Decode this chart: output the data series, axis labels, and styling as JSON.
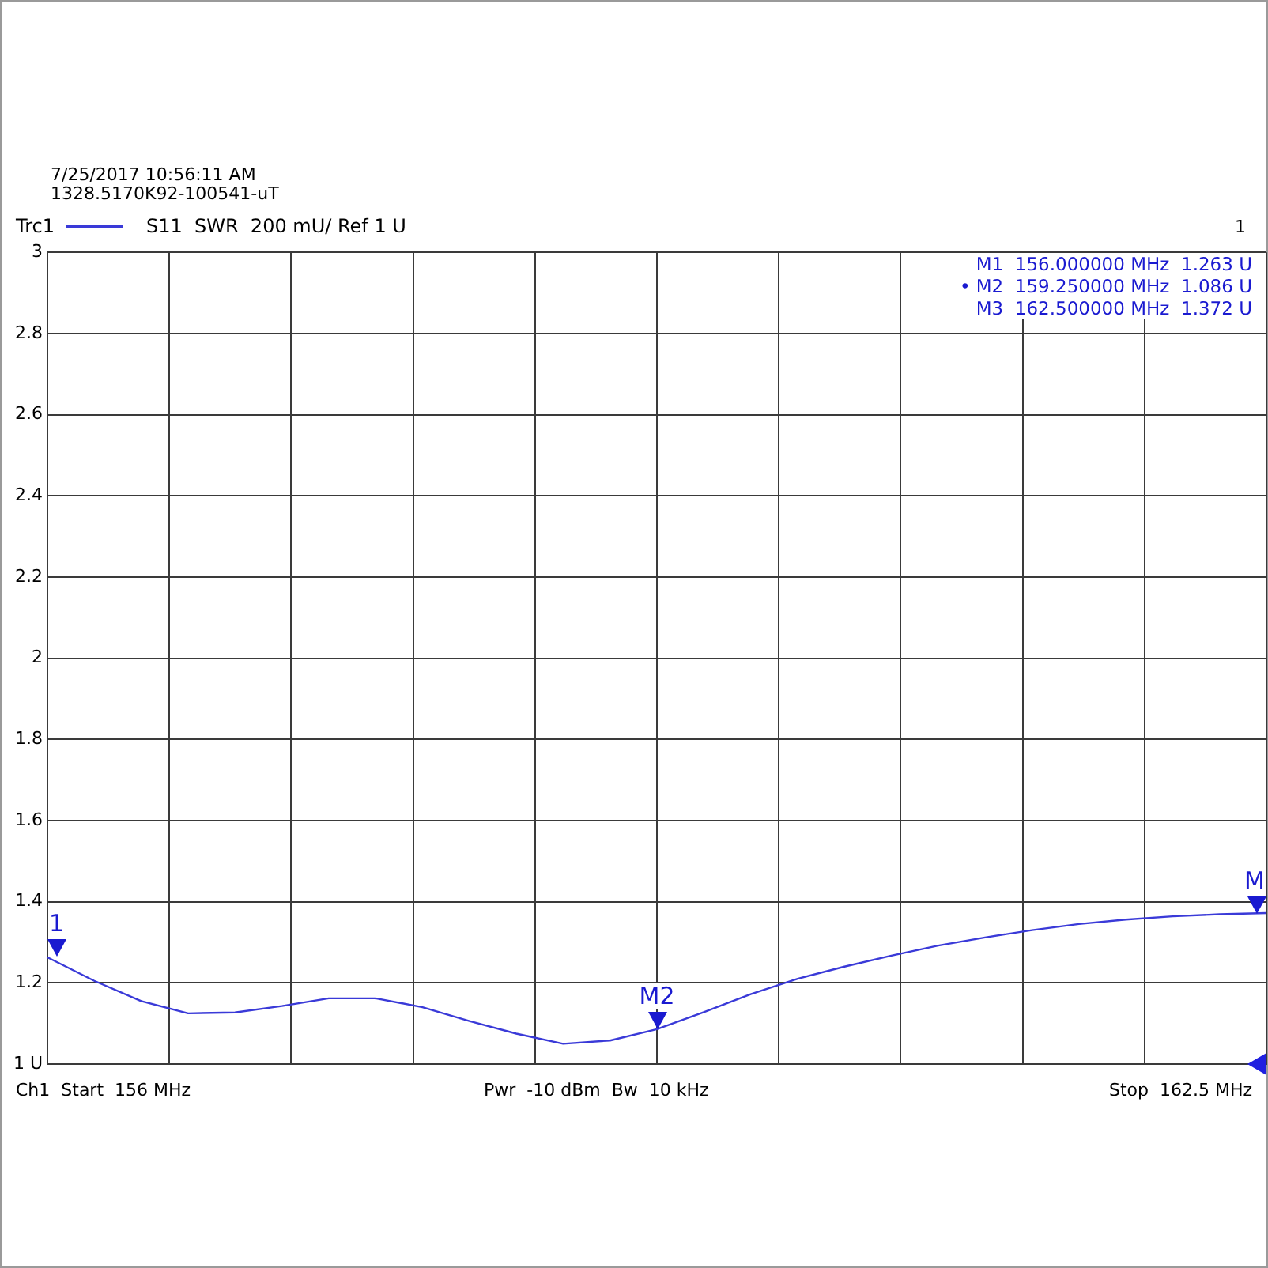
{
  "chart_data": {
    "type": "line",
    "subtitle": "S11  SWR  200 mU/ Ref 1 U",
    "categories": [
      null,
      null,
      null,
      null,
      null,
      null,
      null,
      null,
      null,
      null,
      null,
      null,
      null,
      null,
      null,
      null,
      null,
      null,
      null,
      null,
      null,
      null,
      null,
      null,
      null,
      null,
      null
    ],
    "series": [
      {
        "name": "Trc1",
        "color": "#3a3ad8",
        "values": [
          1.263,
          1.205,
          1.155,
          1.125,
          1.127,
          1.143,
          1.162,
          1.162,
          1.14,
          1.106,
          1.075,
          1.05,
          1.058,
          1.086,
          1.128,
          1.172,
          1.21,
          1.24,
          1.267,
          1.292,
          1.312,
          1.33,
          1.345,
          1.356,
          1.364,
          1.369,
          1.372
        ]
      }
    ],
    "ylim": [
      1,
      3
    ],
    "yticks": [
      {
        "value": 1,
        "label": "1 U"
      },
      1.2,
      1.4,
      1.6,
      1.8,
      2,
      2.2,
      2.4,
      2.6,
      2.8,
      3
    ],
    "tick_labels": "y",
    "grid": true,
    "legend": "top left",
    "marker": "none",
    "line_style": "solid",
    "annotations": [
      "7/25/2017 10:56:11 AM",
      "1328.5170K92-100541-uT",
      "M1  156.000000 MHz  1.263 U",
      "• M2  159.250000 MHz  1.086 U",
      "M3  162.500000 MHz  1.372 U",
      "Ch1  Start  156 MHz",
      "Pwr  -10 dBm  Bw  10 kHz",
      "Stop  162.5 MHz",
      "1",
      {
        "text": "1",
        "y": 1.263
      },
      {
        "text": "M2",
        "y": 1.086
      },
      {
        "text": "M",
        "y": 1.372
      }
    ]
  }
}
